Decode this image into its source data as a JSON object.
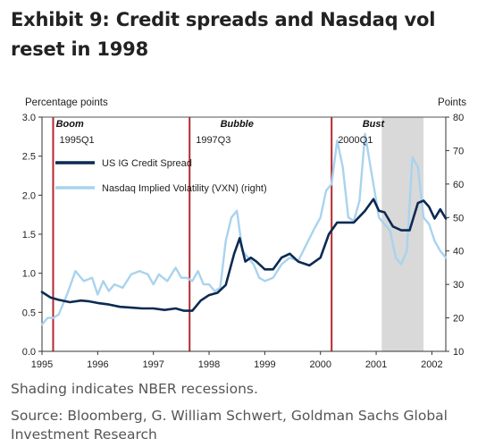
{
  "title": "Exhibit 9: Credit spreads and Nasdaq vol reset in 1998",
  "shading_note": "Shading indicates NBER recessions.",
  "source_note": "Source: Bloomberg, G. William Schwert, Goldman Sachs Global Investment Research",
  "chart_data": {
    "type": "line",
    "left_axis_label": "Percentage points",
    "right_axis_label": "Points",
    "y_left_lim": [
      0.0,
      3.0
    ],
    "y_left_ticks": [
      "0.0",
      "0.5",
      "1.0",
      "1.5",
      "2.0",
      "2.5",
      "3.0"
    ],
    "y_right_lim": [
      10,
      80
    ],
    "y_right_ticks": [
      "10",
      "20",
      "30",
      "40",
      "50",
      "60",
      "70",
      "80"
    ],
    "x_lim": [
      1995.0,
      2002.25
    ],
    "x_ticks": [
      "1995",
      "1996",
      "1997",
      "1998",
      "1999",
      "2000",
      "2001",
      "2002"
    ],
    "regimes": [
      {
        "name": "Boom",
        "x": 1995.5
      },
      {
        "name": "Bubble",
        "x": 1998.5
      },
      {
        "name": "Bust",
        "x": 2000.95
      }
    ],
    "markers": [
      {
        "label": "1995Q1",
        "x": 1995.2
      },
      {
        "label": "1997Q3",
        "x": 1997.65
      },
      {
        "label": "2000Q1",
        "x": 2000.2
      }
    ],
    "recession": {
      "start": 2001.1,
      "end": 2001.85
    },
    "colors": {
      "ig": "#0c2a52",
      "vxn": "#a9d3ee",
      "marker": "#b5282c",
      "recession": "#d9d9d9"
    },
    "series": [
      {
        "name": "US IG Credit Spread",
        "axis": "left",
        "x": [
          1995.0,
          1995.15,
          1995.3,
          1995.5,
          1995.7,
          1995.85,
          1996.0,
          1996.2,
          1996.4,
          1996.6,
          1996.8,
          1997.0,
          1997.2,
          1997.4,
          1997.55,
          1997.7,
          1997.85,
          1998.0,
          1998.15,
          1998.3,
          1998.45,
          1998.55,
          1998.65,
          1998.75,
          1998.85,
          1999.0,
          1999.15,
          1999.3,
          1999.45,
          1999.6,
          1999.8,
          2000.0,
          2000.15,
          2000.3,
          2000.45,
          2000.6,
          2000.8,
          2000.95,
          2001.05,
          2001.15,
          2001.3,
          2001.45,
          2001.6,
          2001.75,
          2001.85,
          2001.95,
          2002.05,
          2002.15,
          2002.25
        ],
        "values": [
          0.76,
          0.69,
          0.66,
          0.63,
          0.65,
          0.64,
          0.62,
          0.6,
          0.57,
          0.56,
          0.55,
          0.55,
          0.53,
          0.55,
          0.52,
          0.52,
          0.65,
          0.72,
          0.75,
          0.85,
          1.25,
          1.45,
          1.15,
          1.2,
          1.15,
          1.05,
          1.05,
          1.2,
          1.25,
          1.15,
          1.1,
          1.2,
          1.5,
          1.65,
          1.65,
          1.65,
          1.8,
          1.95,
          1.8,
          1.78,
          1.6,
          1.55,
          1.55,
          1.9,
          1.93,
          1.85,
          1.7,
          1.82,
          1.7
        ]
      },
      {
        "name": "Nasdaq Implied Volatility (VXN) (right)",
        "axis": "right",
        "x": [
          1995.0,
          1995.1,
          1995.2,
          1995.3,
          1995.45,
          1995.6,
          1995.75,
          1995.9,
          1996.0,
          1996.1,
          1996.2,
          1996.3,
          1996.45,
          1996.6,
          1996.75,
          1996.9,
          1997.0,
          1997.1,
          1997.25,
          1997.4,
          1997.5,
          1997.6,
          1997.7,
          1997.8,
          1997.9,
          1998.0,
          1998.1,
          1998.2,
          1998.3,
          1998.4,
          1998.5,
          1998.6,
          1998.7,
          1998.8,
          1998.9,
          1999.0,
          1999.15,
          1999.3,
          1999.45,
          1999.6,
          1999.75,
          1999.9,
          2000.0,
          2000.1,
          2000.2,
          2000.3,
          2000.4,
          2000.5,
          2000.6,
          2000.7,
          2000.8,
          2000.9,
          2000.95,
          2001.05,
          2001.15,
          2001.25,
          2001.35,
          2001.45,
          2001.55,
          2001.65,
          2001.75,
          2001.85,
          2001.95,
          2002.05,
          2002.15,
          2002.25
        ],
        "values": [
          18,
          20,
          20,
          21,
          27,
          34,
          31,
          32,
          27,
          31,
          28,
          30,
          29,
          33,
          34,
          33,
          30,
          33,
          31,
          35,
          32,
          32,
          31,
          34,
          30,
          30,
          28,
          29,
          43,
          50,
          52,
          40,
          38,
          36,
          32,
          31,
          32,
          36,
          38,
          37,
          42,
          47,
          50,
          58,
          60,
          73,
          65,
          50,
          49,
          55,
          75,
          65,
          60,
          50,
          48,
          46,
          38,
          36,
          40,
          68,
          65,
          50,
          48,
          43,
          40,
          38
        ]
      }
    ]
  }
}
